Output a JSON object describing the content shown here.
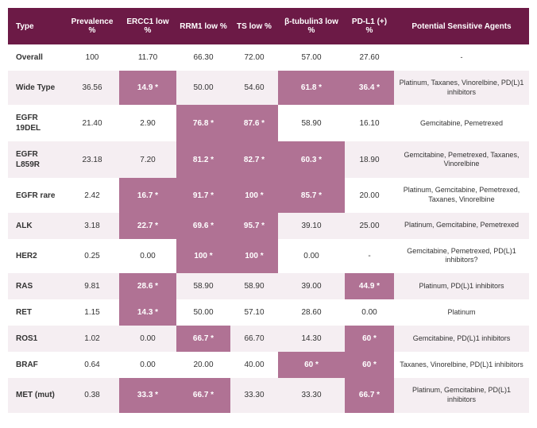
{
  "table": {
    "header_bg": "#6c1a46",
    "header_fg": "#ffffff",
    "row_even_bg": "#f5eef2",
    "row_odd_bg": "#ffffff",
    "highlight_bg": "#b07294",
    "highlight_fg": "#ffffff",
    "columns": [
      {
        "key": "type",
        "label": "Type"
      },
      {
        "key": "prev",
        "label": "Prevalence %"
      },
      {
        "key": "ercc1",
        "label": "ERCC1 low %"
      },
      {
        "key": "rrm1",
        "label": "RRM1 low %"
      },
      {
        "key": "ts",
        "label": "TS low %"
      },
      {
        "key": "btub",
        "label": "β-tubulin3 low %"
      },
      {
        "key": "pdl1",
        "label": "PD-L1 (+) %"
      },
      {
        "key": "agents",
        "label": "Potential Sensitive Agents"
      }
    ],
    "rows": [
      {
        "type": "Overall",
        "prev": "100",
        "ercc1": {
          "v": "11.70",
          "hl": false
        },
        "rrm1": {
          "v": "66.30",
          "hl": false
        },
        "ts": {
          "v": "72.00",
          "hl": false
        },
        "btub": {
          "v": "57.00",
          "hl": false
        },
        "pdl1": {
          "v": "27.60",
          "hl": false
        },
        "agents": "-"
      },
      {
        "type": "Wide Type",
        "prev": "36.56",
        "ercc1": {
          "v": "14.9 *",
          "hl": true
        },
        "rrm1": {
          "v": "50.00",
          "hl": false
        },
        "ts": {
          "v": "54.60",
          "hl": false
        },
        "btub": {
          "v": "61.8 *",
          "hl": true
        },
        "pdl1": {
          "v": "36.4 *",
          "hl": true
        },
        "agents": "Platinum, Taxanes, Vinorelbine, PD(L)1 inhibitors"
      },
      {
        "type": "EGFR 19DEL",
        "prev": "21.40",
        "ercc1": {
          "v": "2.90",
          "hl": false
        },
        "rrm1": {
          "v": "76.8 *",
          "hl": true
        },
        "ts": {
          "v": "87.6 *",
          "hl": true
        },
        "btub": {
          "v": "58.90",
          "hl": false
        },
        "pdl1": {
          "v": "16.10",
          "hl": false
        },
        "agents": "Gemcitabine, Pemetrexed"
      },
      {
        "type": "EGFR L859R",
        "prev": "23.18",
        "ercc1": {
          "v": "7.20",
          "hl": false
        },
        "rrm1": {
          "v": "81.2 *",
          "hl": true
        },
        "ts": {
          "v": "82.7 *",
          "hl": true
        },
        "btub": {
          "v": "60.3 *",
          "hl": true
        },
        "pdl1": {
          "v": "18.90",
          "hl": false
        },
        "agents": "Gemcitabine, Pemetrexed, Taxanes, Vinorelbine"
      },
      {
        "type": "EGFR rare",
        "prev": "2.42",
        "ercc1": {
          "v": "16.7 *",
          "hl": true
        },
        "rrm1": {
          "v": "91.7 *",
          "hl": true
        },
        "ts": {
          "v": "100 *",
          "hl": true
        },
        "btub": {
          "v": "85.7 *",
          "hl": true
        },
        "pdl1": {
          "v": "20.00",
          "hl": false
        },
        "agents": "Platinum, Gemcitabine, Pemetrexed, Taxanes, Vinorelbine"
      },
      {
        "type": "ALK",
        "prev": "3.18",
        "ercc1": {
          "v": "22.7 *",
          "hl": true
        },
        "rrm1": {
          "v": "69.6 *",
          "hl": true
        },
        "ts": {
          "v": "95.7 *",
          "hl": true
        },
        "btub": {
          "v": "39.10",
          "hl": false
        },
        "pdl1": {
          "v": "25.00",
          "hl": false
        },
        "agents": "Platinum, Gemcitabine, Pemetrexed"
      },
      {
        "type": "HER2",
        "prev": "0.25",
        "ercc1": {
          "v": "0.00",
          "hl": false
        },
        "rrm1": {
          "v": "100 *",
          "hl": true
        },
        "ts": {
          "v": "100 *",
          "hl": true
        },
        "btub": {
          "v": "0.00",
          "hl": false
        },
        "pdl1": {
          "v": "-",
          "hl": false
        },
        "agents": "Gemcitabine, Pemetrexed, PD(L)1 inhibitors?"
      },
      {
        "type": "RAS",
        "prev": "9.81",
        "ercc1": {
          "v": "28.6 *",
          "hl": true
        },
        "rrm1": {
          "v": "58.90",
          "hl": false
        },
        "ts": {
          "v": "58.90",
          "hl": false
        },
        "btub": {
          "v": "39.00",
          "hl": false
        },
        "pdl1": {
          "v": "44.9 *",
          "hl": true
        },
        "agents": "Platinum, PD(L)1 inhibitors"
      },
      {
        "type": "RET",
        "prev": "1.15",
        "ercc1": {
          "v": "14.3 *",
          "hl": true
        },
        "rrm1": {
          "v": "50.00",
          "hl": false
        },
        "ts": {
          "v": "57.10",
          "hl": false
        },
        "btub": {
          "v": "28.60",
          "hl": false
        },
        "pdl1": {
          "v": "0.00",
          "hl": false
        },
        "agents": "Platinum"
      },
      {
        "type": "ROS1",
        "prev": "1.02",
        "ercc1": {
          "v": "0.00",
          "hl": false
        },
        "rrm1": {
          "v": "66.7 *",
          "hl": true
        },
        "ts": {
          "v": "66.70",
          "hl": false
        },
        "btub": {
          "v": "14.30",
          "hl": false
        },
        "pdl1": {
          "v": "60 *",
          "hl": true
        },
        "agents": "Gemcitabine, PD(L)1 inhibitors"
      },
      {
        "type": "BRAF",
        "prev": "0.64",
        "ercc1": {
          "v": "0.00",
          "hl": false
        },
        "rrm1": {
          "v": "20.00",
          "hl": false
        },
        "ts": {
          "v": "40.00",
          "hl": false
        },
        "btub": {
          "v": "60 *",
          "hl": true
        },
        "pdl1": {
          "v": "60 *",
          "hl": true
        },
        "agents": "Taxanes, Vinorelbine, PD(L)1 inhibitors"
      },
      {
        "type": "MET (mut)",
        "prev": "0.38",
        "ercc1": {
          "v": "33.3 *",
          "hl": true
        },
        "rrm1": {
          "v": "66.7 *",
          "hl": true
        },
        "ts": {
          "v": "33.30",
          "hl": false
        },
        "btub": {
          "v": "33.30",
          "hl": false
        },
        "pdl1": {
          "v": "66.7 *",
          "hl": true
        },
        "agents": "Platinum, Gemcitabine, PD(L)1 inhibitors"
      }
    ]
  }
}
